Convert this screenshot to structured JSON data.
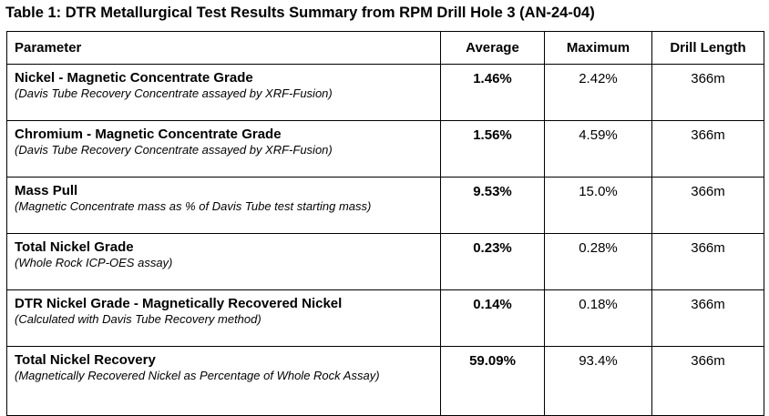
{
  "caption": "Table 1: DTR Metallurgical Test Results Summary from RPM Drill Hole 3 (AN-24-04)",
  "headers": {
    "parameter": "Parameter",
    "average": "Average",
    "maximum": "Maximum",
    "drill_length": "Drill Length"
  },
  "rows": [
    {
      "name": "Nickel - Magnetic Concentrate Grade",
      "desc": "(Davis Tube Recovery Concentrate assayed by XRF-Fusion)",
      "average": "1.46%",
      "maximum": "2.42%",
      "drill_length": "366m"
    },
    {
      "name": "Chromium - Magnetic Concentrate Grade",
      "desc": "(Davis Tube Recovery Concentrate assayed by XRF-Fusion)",
      "average": "1.56%",
      "maximum": "4.59%",
      "drill_length": "366m"
    },
    {
      "name": "Mass Pull",
      "desc": "(Magnetic Concentrate mass as % of Davis Tube test starting mass)",
      "average": "9.53%",
      "maximum": "15.0%",
      "drill_length": "366m"
    },
    {
      "name": "Total Nickel Grade",
      "desc": "(Whole Rock ICP-OES assay)",
      "average": "0.23%",
      "maximum": "0.28%",
      "drill_length": "366m"
    },
    {
      "name": "DTR Nickel Grade - Magnetically Recovered Nickel",
      "desc": "(Calculated with Davis Tube Recovery method)",
      "average": "0.14%",
      "maximum": "0.18%",
      "drill_length": "366m"
    },
    {
      "name": "Total Nickel Recovery",
      "desc": "(Magnetically Recovered Nickel as Percentage of Whole Rock Assay)",
      "average": "59.09%",
      "maximum": "93.4%",
      "drill_length": "366m"
    }
  ]
}
